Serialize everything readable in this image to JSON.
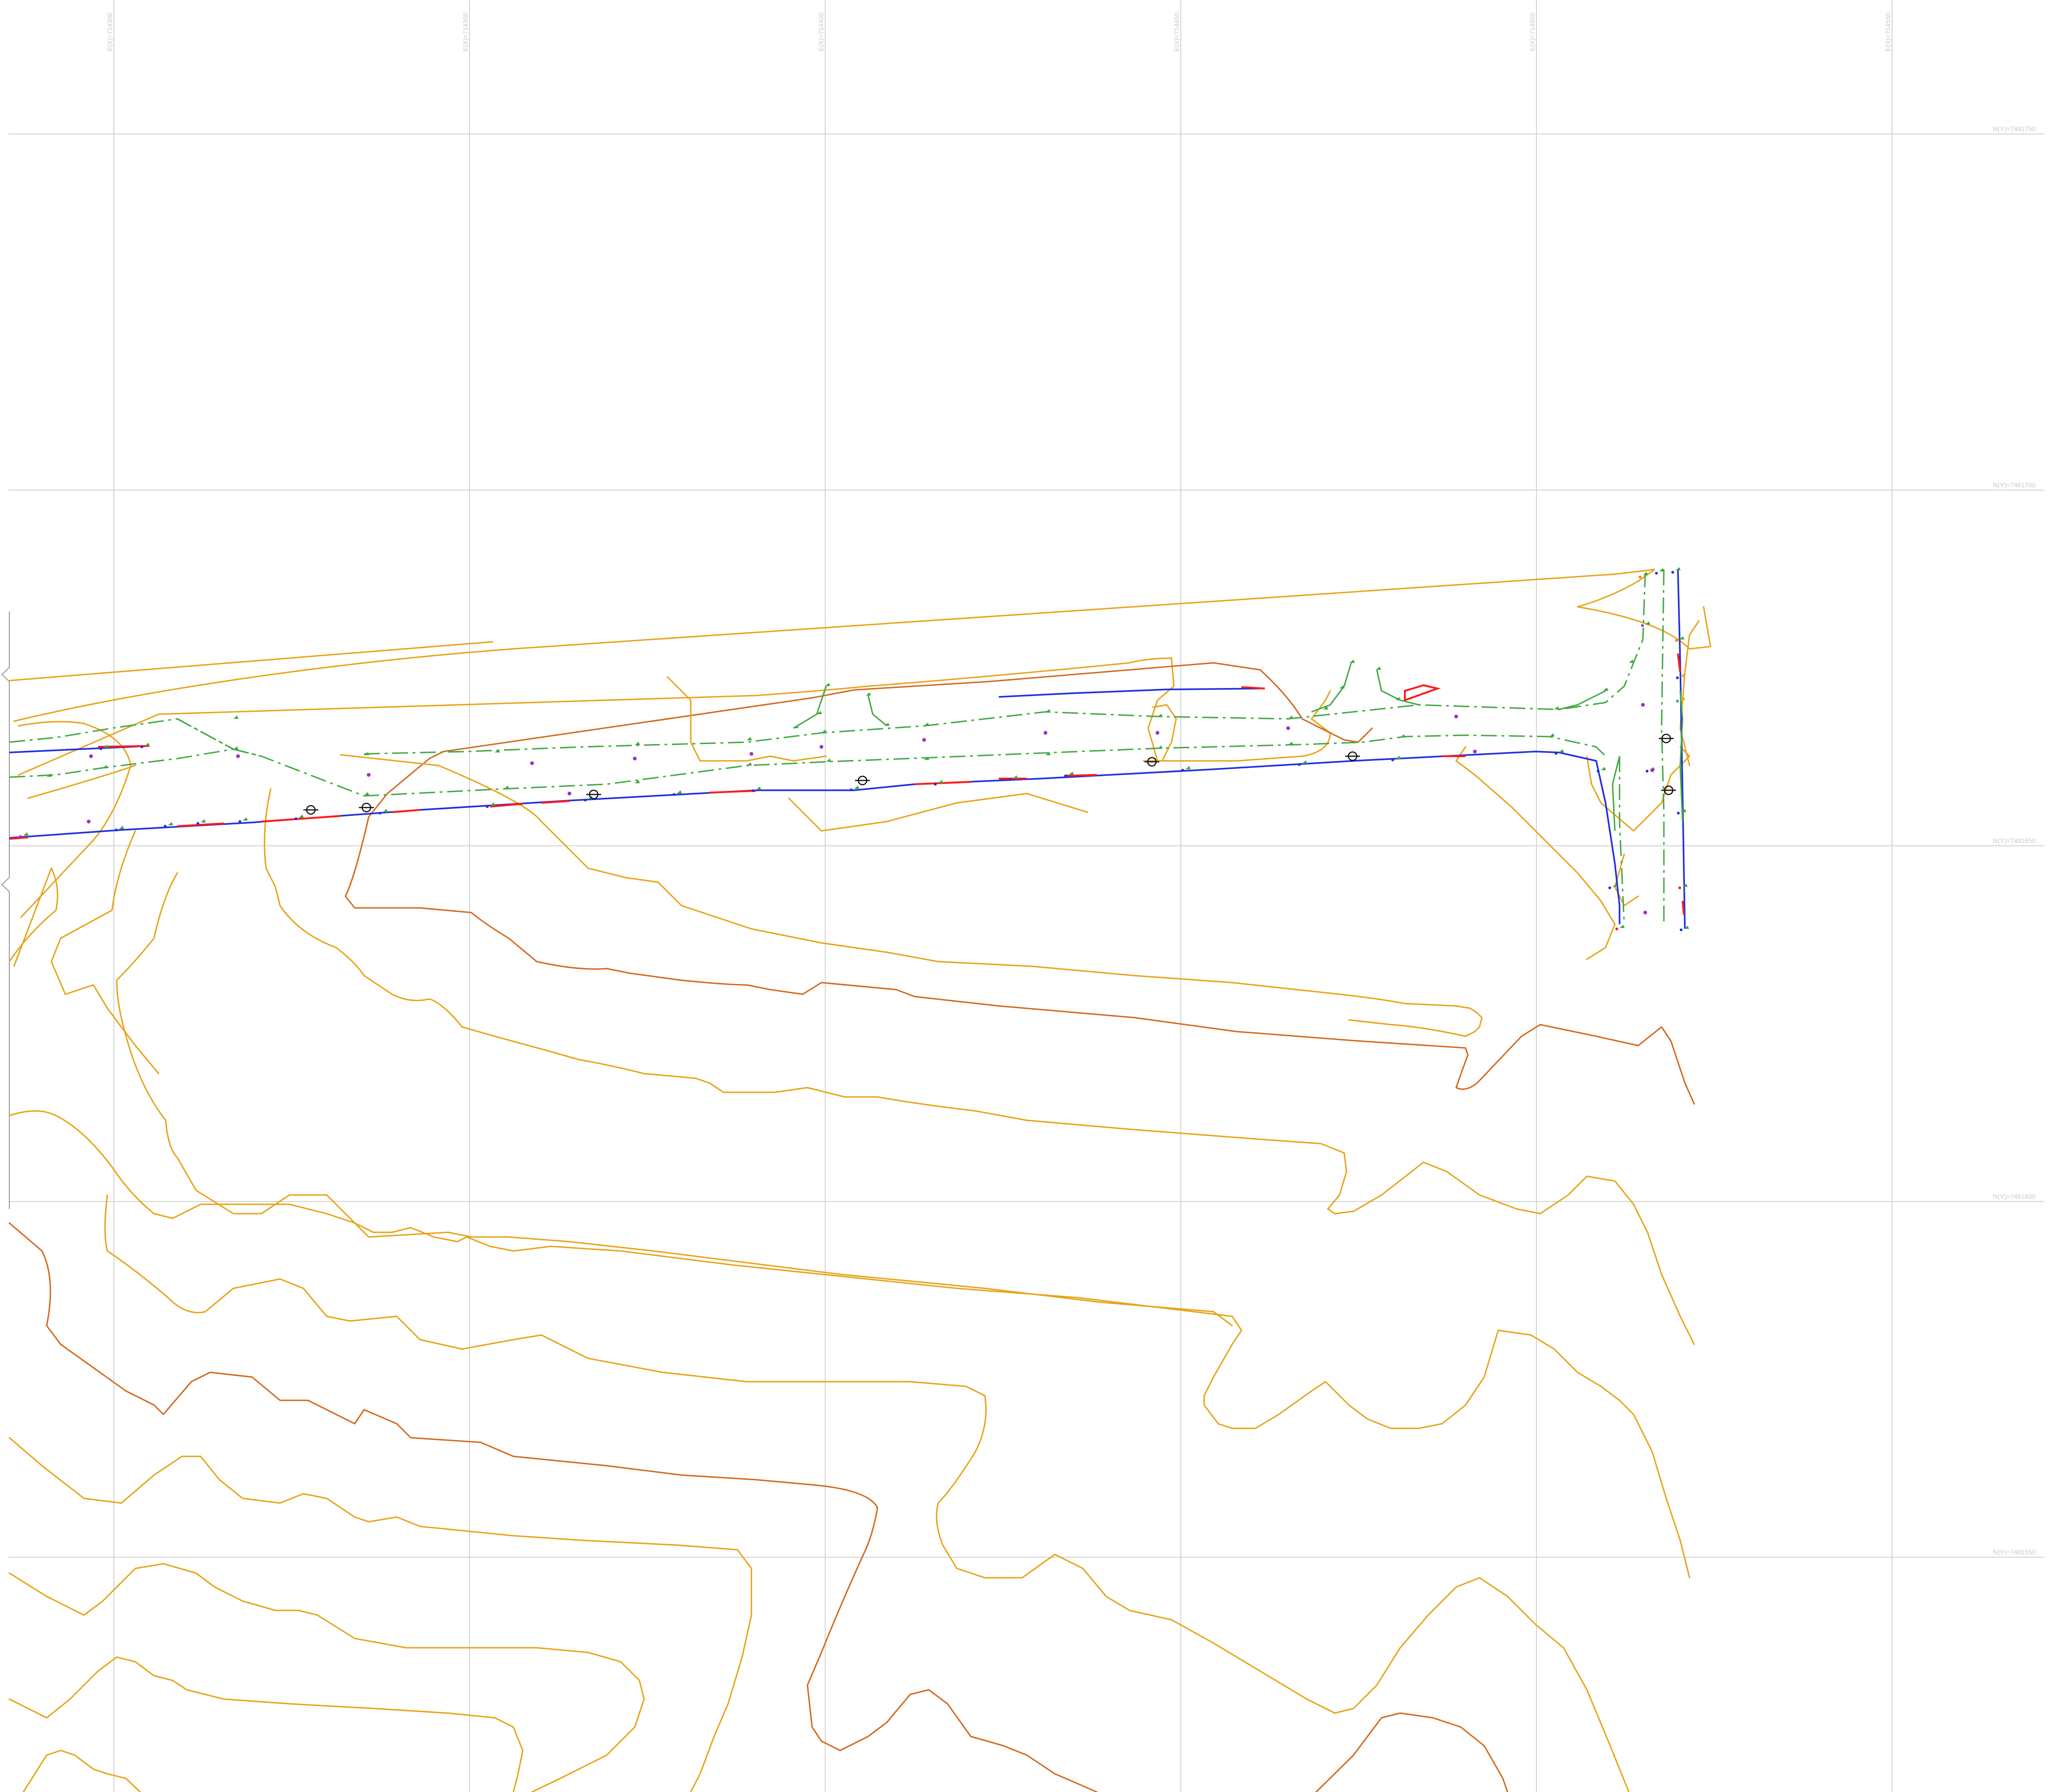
{
  "map": {
    "easting_labels": [
      "E(X)=714300",
      "E(X)=714350",
      "E(X)=714400",
      "E(X)=714450",
      "E(X)=714500",
      "E(X)=714550"
    ],
    "northing_labels": [
      "N(Y)=7481750",
      "N(Y)=7481700",
      "N(Y)=7481650",
      "N(Y)=7481600",
      "N(Y)=7481550"
    ],
    "colors": {
      "grid": "#d4d4d4",
      "contour_major": "#d2691e",
      "contour_minor": "#e8a317",
      "road_edge": "#1f2fe0",
      "road_highlight": "#ff1a1a",
      "centerline": "#3fa93f",
      "manhole": "#111111"
    },
    "layers": [
      "grid",
      "contours",
      "road-edges",
      "centerline",
      "survey-points",
      "manholes"
    ]
  }
}
